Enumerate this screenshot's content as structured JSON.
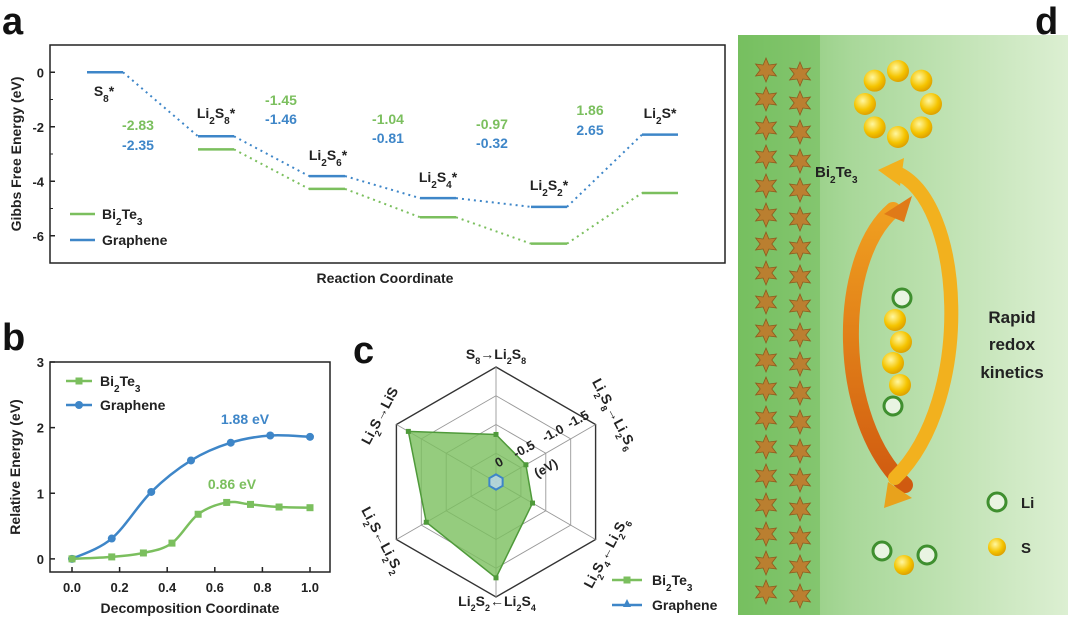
{
  "panels": {
    "a": {
      "label": "a"
    },
    "b": {
      "label": "b"
    },
    "c": {
      "label": "c"
    },
    "d": {
      "label": "d"
    }
  },
  "colors": {
    "bi2te3": "#7bbf5e",
    "graphene": "#3e86c8"
  },
  "chart_data": [
    {
      "panel": "a",
      "type": "line",
      "xlabel": "Reaction Coordinate",
      "ylabel": "Gibbs Free Energy (eV)",
      "ylim": [
        -7,
        1
      ],
      "yticks": [
        0,
        -2,
        -4,
        -6
      ],
      "tick_labels": [
        "0",
        "-2",
        "-4",
        "-6"
      ],
      "categories": [
        "S8*",
        "Li2S8*",
        "Li2S6*",
        "Li2S4*",
        "Li2S2*",
        "Li2S*"
      ],
      "series": [
        {
          "name": "Bi2Te3",
          "values": [
            0,
            -2.83,
            -4.28,
            -5.32,
            -6.29,
            -4.43
          ]
        },
        {
          "name": "Graphene",
          "values": [
            0,
            -2.35,
            -3.81,
            -4.62,
            -4.94,
            -2.29
          ]
        }
      ],
      "step_labels": {
        "bi2te3": [
          "-2.83",
          "-1.45",
          "-1.04",
          "-0.97",
          "1.86"
        ],
        "graphene": [
          "-2.35",
          "-1.46",
          "-0.81",
          "-0.32",
          "2.65"
        ]
      },
      "legend": [
        "Bi2Te3",
        "Graphene"
      ],
      "legend_position": "bottom-left"
    },
    {
      "panel": "b",
      "type": "line",
      "xlabel": "Decomposition Coordinate",
      "ylabel": "Relative Energy (eV)",
      "xlim": [
        0,
        1.0
      ],
      "ylim": [
        -0.2,
        3
      ],
      "xticks": [
        "0.0",
        "0.2",
        "0.4",
        "0.6",
        "0.8",
        "1.0"
      ],
      "yticks": [
        "0",
        "1",
        "2",
        "3"
      ],
      "series": [
        {
          "name": "Bi2Te3",
          "x": [
            0,
            0.167,
            0.3,
            0.42,
            0.53,
            0.65,
            0.75,
            0.87,
            1.0
          ],
          "values": [
            0,
            0.03,
            0.09,
            0.24,
            0.68,
            0.86,
            0.83,
            0.79,
            0.78
          ]
        },
        {
          "name": "Graphene",
          "x": [
            0,
            0.167,
            0.333,
            0.5,
            0.667,
            0.833,
            1.0
          ],
          "values": [
            0,
            0.31,
            1.02,
            1.5,
            1.77,
            1.88,
            1.86
          ]
        }
      ],
      "annotations": {
        "graphene_peak": "1.88 eV",
        "bi2te3_peak": "0.86 eV"
      },
      "legend": [
        "Bi2Te3",
        "Graphene"
      ],
      "legend_position": "top-left"
    },
    {
      "panel": "c",
      "type": "radar",
      "unit_label": "(eV)",
      "ring_labels": [
        "0",
        "-0.5",
        "-1.0",
        "-1.5"
      ],
      "range": [
        0,
        -1.5
      ],
      "axes": [
        "S8→Li2S8",
        "Li2S8→Li2S6",
        "Li2S6→Li2S4",
        "Li2S4→Li2S2",
        "Li2S2→Li2S",
        "Li2S→LiS"
      ],
      "series": [
        {
          "name": "Bi2Te3",
          "values": [
            -0.62,
            -0.45,
            -0.55,
            -1.25,
            -1.05,
            -1.32
          ]
        },
        {
          "name": "Graphene",
          "values": [
            -0.1,
            -0.1,
            -0.1,
            -0.1,
            -0.1,
            -0.1
          ]
        }
      ],
      "legend": [
        "Bi2Te3",
        "Graphene"
      ],
      "legend_position": "bottom-right"
    }
  ],
  "schematic": {
    "material_label": "Bi2Te3",
    "caption_lines": [
      "Rapid",
      "redox",
      "kinetics"
    ],
    "legend": [
      {
        "symbol": "li-atom",
        "label": "Li"
      },
      {
        "symbol": "s-atom",
        "label": "S"
      }
    ]
  }
}
